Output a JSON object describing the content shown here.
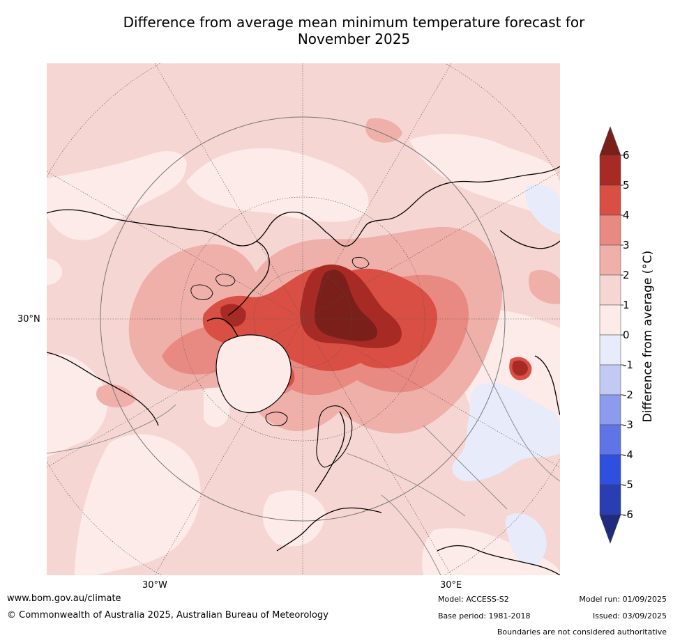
{
  "title": "Difference from average mean minimum temperature forecast for\nNovember 2025",
  "map": {
    "projection": "north polar stereographic",
    "graticule_labels": {
      "lat": "30°N",
      "lon_west": "30°W",
      "lon_east": "30°E"
    }
  },
  "colorbar": {
    "label": "Difference from average (°C)",
    "ticks": [
      "6",
      "5",
      "4",
      "3",
      "2",
      "1",
      "0",
      "-1",
      "-2",
      "-3",
      "-4",
      "-5",
      "-6"
    ],
    "bins": [
      {
        "range": "> 6",
        "color": "#7a1f1a"
      },
      {
        "range": "5 to 6",
        "color": "#a82a25"
      },
      {
        "range": "4 to 5",
        "color": "#d94f43"
      },
      {
        "range": "3 to 4",
        "color": "#e98a82"
      },
      {
        "range": "2 to 3",
        "color": "#efb0aa"
      },
      {
        "range": "1 to 2",
        "color": "#f6d6d3"
      },
      {
        "range": "0 to 1",
        "color": "#fcebe8"
      },
      {
        "range": "-1 to 0",
        "color": "#e7ebfa"
      },
      {
        "range": "-2 to -1",
        "color": "#c2c9f2"
      },
      {
        "range": "-3 to -2",
        "color": "#8c9bed"
      },
      {
        "range": "-4 to -3",
        "color": "#5f74e6"
      },
      {
        "range": "-5 to -4",
        "color": "#2f4fdf"
      },
      {
        "range": "-6 to -5",
        "color": "#2a3eb3"
      },
      {
        "range": "< -6",
        "color": "#1f2b7e"
      }
    ]
  },
  "footer": {
    "website": "www.bom.gov.au/climate",
    "copyright": "© Commonwealth of Australia 2025, Australian Bureau of Meteorology",
    "model": "Model: ACCESS-S2",
    "base_period": "Base period: 1981-2018",
    "model_run": "Model run: 01/09/2025",
    "issued": "Issued: 03/09/2025",
    "disclaimer": "Boundaries are not considered authoritative"
  },
  "colors": {
    "anomaly_0_1": "#fcebe8",
    "anomaly_1_2": "#f6d6d3",
    "anomaly_2_3": "#efb0aa",
    "anomaly_3_4": "#e98a82",
    "anomaly_4_5": "#d94f43",
    "anomaly_5_6": "#a82a25",
    "anomaly_gt6": "#7a1f1a",
    "anomaly_neg": "#e7ebfa"
  }
}
